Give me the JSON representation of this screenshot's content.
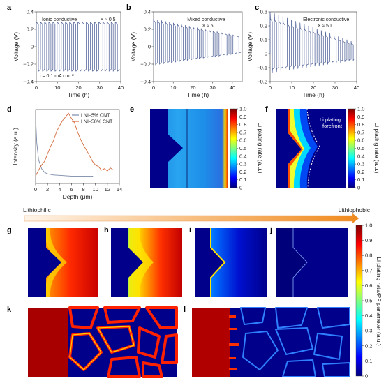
{
  "charts": [
    {
      "id": "a",
      "letter": "a",
      "type": "line",
      "title": "Ionic conductive",
      "multiplier": "× ≈ 0.5",
      "annotation": "i = 0.1 mA cm⁻²",
      "xlabel": "Time (h)",
      "ylabel": "Voltage (V)",
      "xlim": [
        0,
        40
      ],
      "ylim": [
        -0.4,
        0.4
      ],
      "xticks": [
        0,
        10,
        20,
        30,
        40
      ],
      "yticks": [
        -0.4,
        -0.2,
        0.0,
        0.2,
        0.4
      ],
      "ytick_labels": [
        "−0.4",
        "−0.2",
        "0",
        "0.2",
        "0.4"
      ],
      "series_color": "#5a6b9e",
      "pattern": {
        "cycles": 20,
        "high": [
          0.28,
          0.28
        ],
        "low": [
          -0.28,
          -0.28
        ],
        "spike": 0
      }
    },
    {
      "id": "b",
      "letter": "b",
      "type": "line",
      "title": "Mixed conductive",
      "multiplier": "× ≈ 5",
      "xlabel": "Time (h)",
      "ylabel": "Voltage (V)",
      "xlim": [
        0,
        45
      ],
      "ylim": [
        -0.4,
        0.4
      ],
      "xticks": [
        0,
        10,
        20,
        30,
        40
      ],
      "yticks": [
        -0.4,
        -0.2,
        0.0,
        0.2,
        0.4
      ],
      "ytick_labels": [
        "−0.4",
        "−0.2",
        "0",
        "0.2",
        "0.4"
      ],
      "series_color": "#5a6b9e",
      "pattern": {
        "cycles": 22,
        "high": [
          0.3,
          0.12
        ],
        "low": [
          -0.2,
          -0.07
        ],
        "spike": 0.02
      }
    },
    {
      "id": "c",
      "letter": "c",
      "type": "line",
      "title": "Electronic conductive",
      "multiplier": "× ≈ 50",
      "xlabel": "Time (h)",
      "ylabel": "Voltage (V)",
      "xlim": [
        0,
        40
      ],
      "ylim": [
        -0.2,
        0.3
      ],
      "xticks": [
        0,
        10,
        20,
        30,
        40
      ],
      "yticks": [
        -0.2,
        -0.1,
        0.0,
        0.1,
        0.2,
        0.3
      ],
      "ytick_labels": [
        "−0.2",
        "−0.1",
        "0",
        "0.1",
        "0.2",
        "0.3"
      ],
      "series_color": "#5a6b9e",
      "pattern": {
        "cycles": 20,
        "high": [
          0.25,
          0.07
        ],
        "low": [
          -0.11,
          -0.04
        ],
        "spike": 0.05
      }
    },
    {
      "id": "d",
      "letter": "d",
      "type": "line",
      "xlabel": "Depth (μm)",
      "ylabel": "Intensity (a.u.)",
      "xlim": [
        0,
        14
      ],
      "ylim": [
        0,
        1.0
      ],
      "xticks": [
        0,
        2,
        4,
        6,
        8,
        10,
        12,
        14
      ],
      "yticks": [],
      "legend": [
        "LNI−5% CNT",
        "LNI−50% CNT"
      ],
      "legend_position": "top-right",
      "series": [
        {
          "name": "LNI−5% CNT",
          "color": "#7a8aa8",
          "x": [
            0,
            0.2,
            0.5,
            1,
            1.5,
            2,
            3,
            4,
            5,
            6,
            7,
            8,
            9,
            9.6
          ],
          "y": [
            0.9,
            0.55,
            0.32,
            0.2,
            0.15,
            0.13,
            0.115,
            0.11,
            0.105,
            0.1,
            0.1,
            0.1,
            0.1,
            0.1
          ]
        },
        {
          "name": "LNI−50% CNT",
          "color": "#d46a3c",
          "x": [
            0,
            0.5,
            1,
            1.5,
            2,
            2.5,
            3,
            3.5,
            4,
            4.5,
            5,
            5.5,
            6,
            6.5,
            7,
            7.5,
            8,
            8.5,
            9,
            9.5,
            10,
            10.5,
            11,
            11.5,
            12,
            12.5,
            13
          ],
          "y": [
            0.1,
            0.18,
            0.25,
            0.3,
            0.4,
            0.5,
            0.58,
            0.7,
            0.78,
            0.85,
            0.9,
            0.95,
            0.88,
            0.82,
            0.7,
            0.6,
            0.52,
            0.45,
            0.38,
            0.3,
            0.25,
            0.23,
            0.18,
            0.2,
            0.17,
            0.21,
            0.18
          ]
        }
      ]
    }
  ],
  "colorbars": {
    "ticks": [
      "1.0",
      "0.9",
      "0.8",
      "0.7",
      "0.6",
      "0.5",
      "0.4",
      "0.3",
      "0.2",
      "0.1",
      "0"
    ],
    "label_ef": "Li plating rate (a.u.)",
    "label_main": "Li plating rate/PF parameter (a.u.)"
  },
  "panels": {
    "e": "e",
    "f": "f",
    "g": "g",
    "h": "h",
    "i": "i",
    "j": "j",
    "k": "k",
    "l": "l"
  },
  "annotations": {
    "f_forefront": [
      "Li plating",
      "forefront"
    ]
  },
  "gradient_arrow": {
    "left_label": "Lithiophilic",
    "right_label": "Lithiophobic",
    "color_start": "#fff4e8",
    "color_end": "#f08a1c"
  },
  "colors": {
    "jet": [
      "#00007f",
      "#0000ff",
      "#007fff",
      "#00ffff",
      "#7fff7f",
      "#ffff00",
      "#ff7f00",
      "#ff0000",
      "#7f0000"
    ]
  }
}
